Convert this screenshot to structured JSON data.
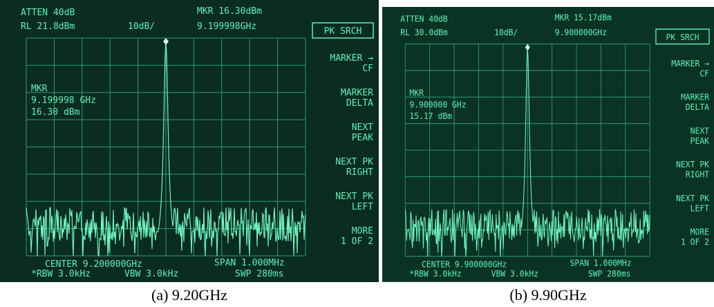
{
  "panels": [
    {
      "atten": "ATTEN 40dB",
      "ref_level": "RL 21.8dBm",
      "scale": "10dB/",
      "marker_top": "MKR 16.30dBm",
      "marker_freq_top": "9.199998GHz",
      "active_key": "PK SRCH",
      "softkeys": [
        [
          "MARKER →",
          "CF"
        ],
        [
          "MARKER",
          "DELTA"
        ],
        [
          "NEXT",
          "PEAK"
        ],
        [
          "NEXT PK",
          "RIGHT"
        ],
        [
          "NEXT PK",
          "LEFT"
        ],
        [
          "MORE",
          "1 OF 2"
        ]
      ],
      "marker_block": [
        "MKR",
        "9.199998 GHz",
        "16.30 dBm"
      ],
      "center": "CENTER 9.200000GHz",
      "rbw": "*RBW 3.0kHz",
      "vbw": "VBW 3.0kHz",
      "span": "SPAN 1.000MHz",
      "sweep": "SWP 280ms",
      "caption": "(a) 9.20GHz"
    },
    {
      "atten": "ATTEN 40dB",
      "ref_level": "RL 30.0dBm",
      "scale": "10dB/",
      "marker_top": "MKR 15.17dBm",
      "marker_freq_top": "9.900000GHz",
      "active_key": "PK SRCH",
      "softkeys": [
        [
          "MARKER →",
          "CF"
        ],
        [
          "MARKER",
          "DELTA"
        ],
        [
          "NEXT",
          "PEAK"
        ],
        [
          "NEXT PK",
          "RIGHT"
        ],
        [
          "NEXT PK",
          "LEFT"
        ],
        [
          "MORE",
          "1 OF 2"
        ]
      ],
      "marker_block": [
        "MKR",
        "9.900000 GHz",
        "15.17 dBm"
      ],
      "center": "CENTER 9.900000GHz",
      "rbw": "*RBW 3.0kHz",
      "vbw": "VBW 3.0kHz",
      "span": "SPAN 1.000MHz",
      "sweep": "SWP 280ms",
      "caption": "(b) 9.90GHz"
    }
  ]
}
